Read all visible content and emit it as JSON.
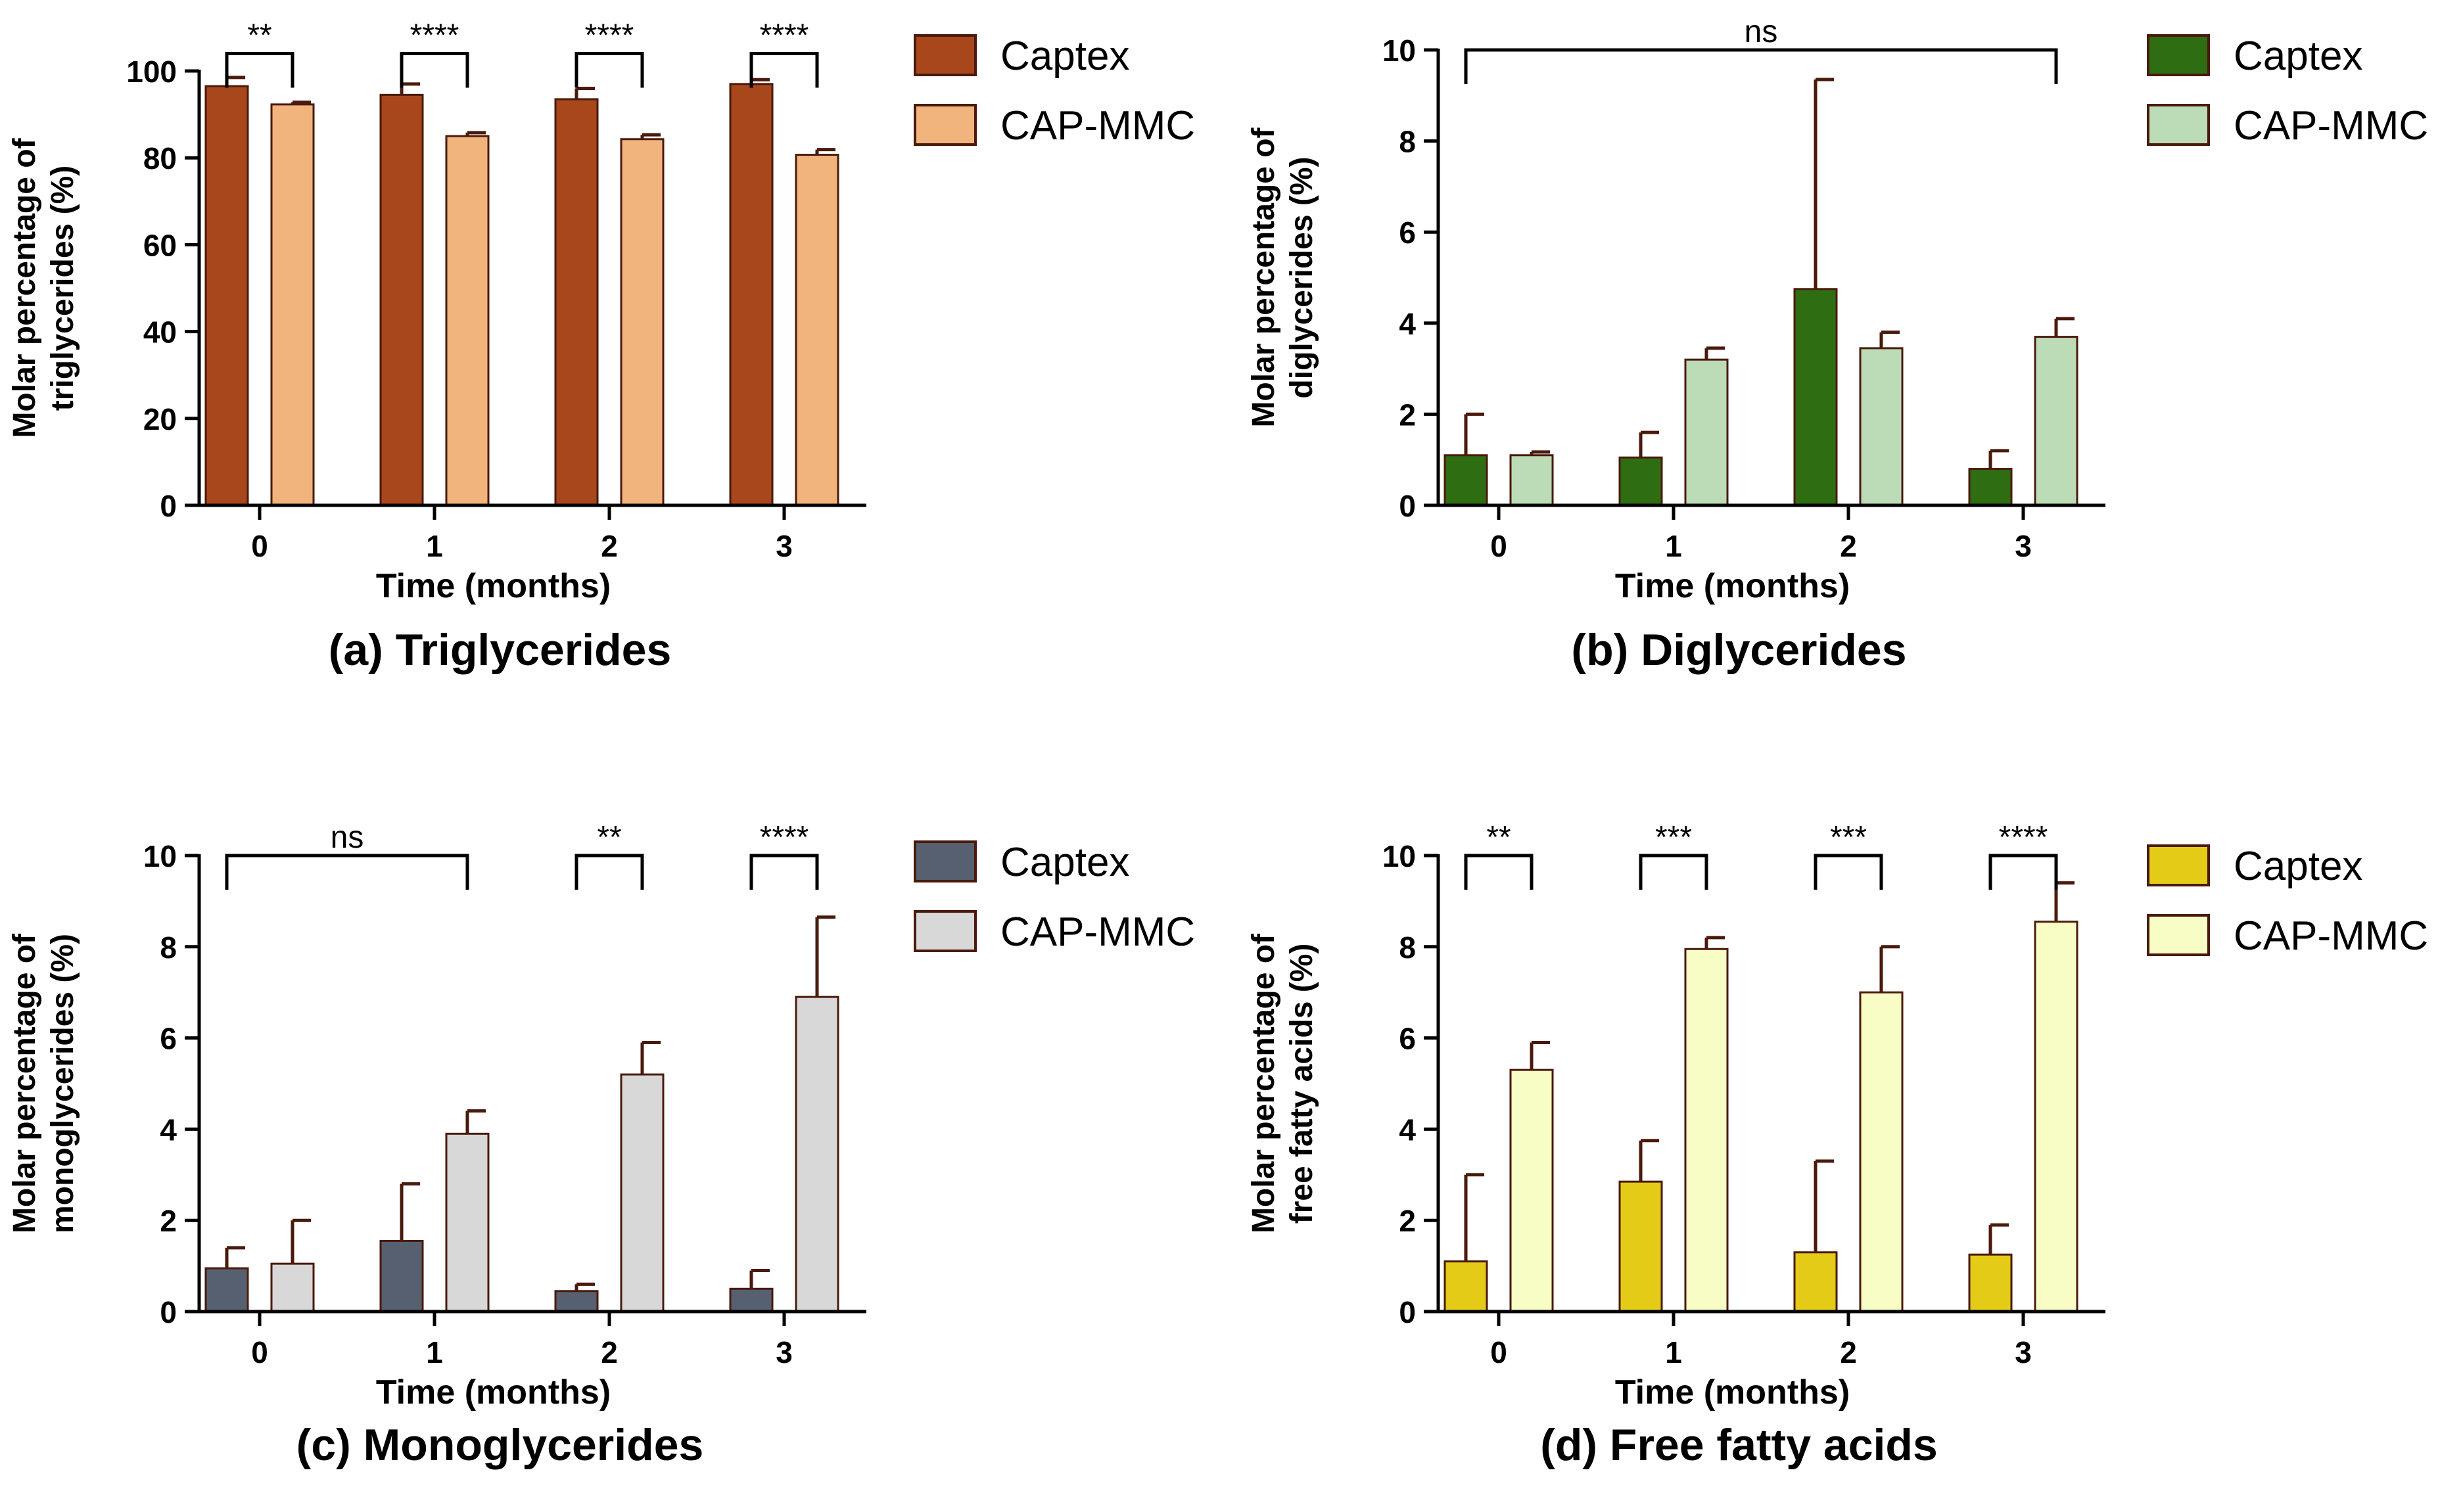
{
  "chart_data": [
    {
      "id": "a",
      "type": "bar",
      "title": "(a) Triglycerides",
      "xlabel": "Time (months)",
      "ylabel": [
        "Molar percentage of",
        "triglycerides (%)"
      ],
      "categories": [
        "0",
        "1",
        "2",
        "3"
      ],
      "ylim": [
        0,
        100
      ],
      "yticks": [
        0,
        20,
        40,
        60,
        80,
        100
      ],
      "colors": {
        "Captex": "#a8471b",
        "CAP-MMC": "#f2b47d",
        "error": "#4a1a0c"
      },
      "series": [
        {
          "name": "Captex",
          "values": [
            96.5,
            94.5,
            93.5,
            97.0
          ],
          "errors": [
            2.0,
            2.5,
            2.5,
            1.0
          ]
        },
        {
          "name": "CAP-MMC",
          "values": [
            92.3,
            85.0,
            84.3,
            80.7
          ],
          "errors": [
            0.5,
            0.8,
            1.0,
            1.2
          ]
        }
      ],
      "significance": [
        {
          "from": "0",
          "to": "0",
          "span": "pair",
          "label": "**",
          "y": 104
        },
        {
          "from": "1",
          "to": "1",
          "span": "pair",
          "label": "****",
          "y": 104
        },
        {
          "from": "2",
          "to": "2",
          "span": "pair",
          "label": "****",
          "y": 104
        },
        {
          "from": "3",
          "to": "3",
          "span": "pair",
          "label": "****",
          "y": 104
        }
      ],
      "legend": [
        "Captex",
        "CAP-MMC"
      ]
    },
    {
      "id": "b",
      "type": "bar",
      "title": "(b) Diglycerides",
      "xlabel": "Time (months)",
      "ylabel": [
        "Molar percentage of",
        "diglycerides (%)"
      ],
      "categories": [
        "0",
        "1",
        "2",
        "3"
      ],
      "ylim": [
        0,
        10
      ],
      "yticks": [
        0,
        2,
        4,
        6,
        8,
        10
      ],
      "colors": {
        "Captex": "#2e6d12",
        "CAP-MMC": "#bcdcb8",
        "error": "#4a1a0c"
      },
      "series": [
        {
          "name": "Captex",
          "values": [
            1.1,
            1.05,
            4.75,
            0.8
          ],
          "errors": [
            0.9,
            0.55,
            4.6,
            0.4
          ]
        },
        {
          "name": "CAP-MMC",
          "values": [
            1.1,
            3.2,
            3.45,
            3.7
          ],
          "errors": [
            0.07,
            0.25,
            0.35,
            0.4
          ]
        }
      ],
      "significance": [
        {
          "from": "0",
          "to": "3",
          "span": "across",
          "label": "ns",
          "y": 10
        }
      ],
      "legend": [
        "Captex",
        "CAP-MMC"
      ]
    },
    {
      "id": "c",
      "type": "bar",
      "title": "(c) Monoglycerides",
      "xlabel": "Time (months)",
      "ylabel": [
        "Molar percentage of",
        "monoglycerides (%)"
      ],
      "categories": [
        "0",
        "1",
        "2",
        "3"
      ],
      "ylim": [
        0,
        10
      ],
      "yticks": [
        0,
        2,
        4,
        6,
        8,
        10
      ],
      "colors": {
        "Captex": "#566070",
        "CAP-MMC": "#d8d8d8",
        "error": "#4a1a0c"
      },
      "series": [
        {
          "name": "Captex",
          "values": [
            0.95,
            1.55,
            0.45,
            0.5
          ],
          "errors": [
            0.45,
            1.25,
            0.15,
            0.4
          ]
        },
        {
          "name": "CAP-MMC",
          "values": [
            1.05,
            3.9,
            5.2,
            6.9
          ],
          "errors": [
            0.95,
            0.5,
            0.7,
            1.75
          ]
        }
      ],
      "significance": [
        {
          "from": "0",
          "to": "1",
          "span": "across",
          "label": "ns",
          "y": 10
        },
        {
          "from": "2",
          "to": "2",
          "span": "pair",
          "label": "**",
          "y": 10
        },
        {
          "from": "3",
          "to": "3",
          "span": "pair",
          "label": "****",
          "y": 10
        }
      ],
      "legend": [
        "Captex",
        "CAP-MMC"
      ]
    },
    {
      "id": "d",
      "type": "bar",
      "title": "(d) Free fatty acids",
      "xlabel": "Time (months)",
      "ylabel": [
        "Molar percentage of",
        "free fatty acids (%)"
      ],
      "categories": [
        "0",
        "1",
        "2",
        "3"
      ],
      "ylim": [
        0,
        10
      ],
      "yticks": [
        0,
        2,
        4,
        6,
        8,
        10
      ],
      "colors": {
        "Captex": "#e3cb18",
        "CAP-MMC": "#f7fdc4",
        "error": "#4a1a0c"
      },
      "series": [
        {
          "name": "Captex",
          "values": [
            1.1,
            2.85,
            1.3,
            1.25
          ],
          "errors": [
            1.9,
            0.9,
            2.0,
            0.65
          ]
        },
        {
          "name": "CAP-MMC",
          "values": [
            5.3,
            7.95,
            7.0,
            8.55
          ],
          "errors": [
            0.6,
            0.25,
            1.0,
            0.85
          ]
        }
      ],
      "significance": [
        {
          "from": "0",
          "to": "0",
          "span": "pair",
          "label": "**",
          "y": 10
        },
        {
          "from": "1",
          "to": "1",
          "span": "pair",
          "label": "***",
          "y": 10
        },
        {
          "from": "2",
          "to": "2",
          "span": "pair",
          "label": "***",
          "y": 10
        },
        {
          "from": "3",
          "to": "3",
          "span": "pair",
          "label": "****",
          "y": 10
        }
      ],
      "legend": [
        "Captex",
        "CAP-MMC"
      ]
    }
  ]
}
